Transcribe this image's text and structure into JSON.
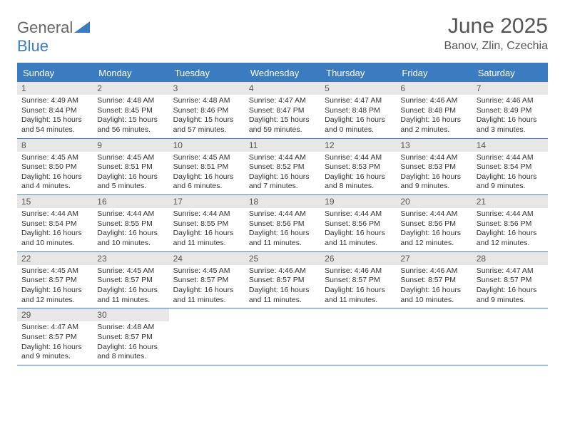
{
  "logo": {
    "part1": "General",
    "part2": "Blue"
  },
  "title": "June 2025",
  "location": "Banov, Zlin, Czechia",
  "colors": {
    "header_bg": "#3b7bbf",
    "header_text": "#ffffff",
    "daynum_bg": "#e7e7e7",
    "border": "#3b7bbf",
    "logo_gray": "#666666",
    "logo_blue": "#3b7bbf",
    "body_text": "#333333"
  },
  "day_headers": [
    "Sunday",
    "Monday",
    "Tuesday",
    "Wednesday",
    "Thursday",
    "Friday",
    "Saturday"
  ],
  "weeks": [
    [
      {
        "n": "1",
        "sr": "Sunrise: 4:49 AM",
        "ss": "Sunset: 8:44 PM",
        "dl": "Daylight: 15 hours and 54 minutes."
      },
      {
        "n": "2",
        "sr": "Sunrise: 4:48 AM",
        "ss": "Sunset: 8:45 PM",
        "dl": "Daylight: 15 hours and 56 minutes."
      },
      {
        "n": "3",
        "sr": "Sunrise: 4:48 AM",
        "ss": "Sunset: 8:46 PM",
        "dl": "Daylight: 15 hours and 57 minutes."
      },
      {
        "n": "4",
        "sr": "Sunrise: 4:47 AM",
        "ss": "Sunset: 8:47 PM",
        "dl": "Daylight: 15 hours and 59 minutes."
      },
      {
        "n": "5",
        "sr": "Sunrise: 4:47 AM",
        "ss": "Sunset: 8:48 PM",
        "dl": "Daylight: 16 hours and 0 minutes."
      },
      {
        "n": "6",
        "sr": "Sunrise: 4:46 AM",
        "ss": "Sunset: 8:48 PM",
        "dl": "Daylight: 16 hours and 2 minutes."
      },
      {
        "n": "7",
        "sr": "Sunrise: 4:46 AM",
        "ss": "Sunset: 8:49 PM",
        "dl": "Daylight: 16 hours and 3 minutes."
      }
    ],
    [
      {
        "n": "8",
        "sr": "Sunrise: 4:45 AM",
        "ss": "Sunset: 8:50 PM",
        "dl": "Daylight: 16 hours and 4 minutes."
      },
      {
        "n": "9",
        "sr": "Sunrise: 4:45 AM",
        "ss": "Sunset: 8:51 PM",
        "dl": "Daylight: 16 hours and 5 minutes."
      },
      {
        "n": "10",
        "sr": "Sunrise: 4:45 AM",
        "ss": "Sunset: 8:51 PM",
        "dl": "Daylight: 16 hours and 6 minutes."
      },
      {
        "n": "11",
        "sr": "Sunrise: 4:44 AM",
        "ss": "Sunset: 8:52 PM",
        "dl": "Daylight: 16 hours and 7 minutes."
      },
      {
        "n": "12",
        "sr": "Sunrise: 4:44 AM",
        "ss": "Sunset: 8:53 PM",
        "dl": "Daylight: 16 hours and 8 minutes."
      },
      {
        "n": "13",
        "sr": "Sunrise: 4:44 AM",
        "ss": "Sunset: 8:53 PM",
        "dl": "Daylight: 16 hours and 9 minutes."
      },
      {
        "n": "14",
        "sr": "Sunrise: 4:44 AM",
        "ss": "Sunset: 8:54 PM",
        "dl": "Daylight: 16 hours and 9 minutes."
      }
    ],
    [
      {
        "n": "15",
        "sr": "Sunrise: 4:44 AM",
        "ss": "Sunset: 8:54 PM",
        "dl": "Daylight: 16 hours and 10 minutes."
      },
      {
        "n": "16",
        "sr": "Sunrise: 4:44 AM",
        "ss": "Sunset: 8:55 PM",
        "dl": "Daylight: 16 hours and 10 minutes."
      },
      {
        "n": "17",
        "sr": "Sunrise: 4:44 AM",
        "ss": "Sunset: 8:55 PM",
        "dl": "Daylight: 16 hours and 11 minutes."
      },
      {
        "n": "18",
        "sr": "Sunrise: 4:44 AM",
        "ss": "Sunset: 8:56 PM",
        "dl": "Daylight: 16 hours and 11 minutes."
      },
      {
        "n": "19",
        "sr": "Sunrise: 4:44 AM",
        "ss": "Sunset: 8:56 PM",
        "dl": "Daylight: 16 hours and 11 minutes."
      },
      {
        "n": "20",
        "sr": "Sunrise: 4:44 AM",
        "ss": "Sunset: 8:56 PM",
        "dl": "Daylight: 16 hours and 12 minutes."
      },
      {
        "n": "21",
        "sr": "Sunrise: 4:44 AM",
        "ss": "Sunset: 8:56 PM",
        "dl": "Daylight: 16 hours and 12 minutes."
      }
    ],
    [
      {
        "n": "22",
        "sr": "Sunrise: 4:45 AM",
        "ss": "Sunset: 8:57 PM",
        "dl": "Daylight: 16 hours and 12 minutes."
      },
      {
        "n": "23",
        "sr": "Sunrise: 4:45 AM",
        "ss": "Sunset: 8:57 PM",
        "dl": "Daylight: 16 hours and 11 minutes."
      },
      {
        "n": "24",
        "sr": "Sunrise: 4:45 AM",
        "ss": "Sunset: 8:57 PM",
        "dl": "Daylight: 16 hours and 11 minutes."
      },
      {
        "n": "25",
        "sr": "Sunrise: 4:46 AM",
        "ss": "Sunset: 8:57 PM",
        "dl": "Daylight: 16 hours and 11 minutes."
      },
      {
        "n": "26",
        "sr": "Sunrise: 4:46 AM",
        "ss": "Sunset: 8:57 PM",
        "dl": "Daylight: 16 hours and 11 minutes."
      },
      {
        "n": "27",
        "sr": "Sunrise: 4:46 AM",
        "ss": "Sunset: 8:57 PM",
        "dl": "Daylight: 16 hours and 10 minutes."
      },
      {
        "n": "28",
        "sr": "Sunrise: 4:47 AM",
        "ss": "Sunset: 8:57 PM",
        "dl": "Daylight: 16 hours and 9 minutes."
      }
    ],
    [
      {
        "n": "29",
        "sr": "Sunrise: 4:47 AM",
        "ss": "Sunset: 8:57 PM",
        "dl": "Daylight: 16 hours and 9 minutes."
      },
      {
        "n": "30",
        "sr": "Sunrise: 4:48 AM",
        "ss": "Sunset: 8:57 PM",
        "dl": "Daylight: 16 hours and 8 minutes."
      },
      null,
      null,
      null,
      null,
      null
    ]
  ]
}
